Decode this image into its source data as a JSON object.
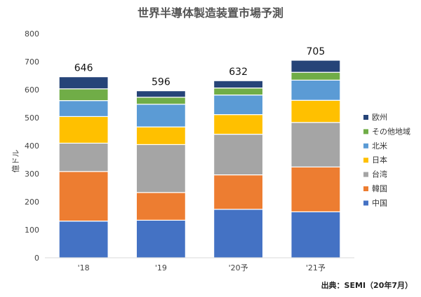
{
  "chart_data": {
    "type": "bar",
    "stacked": true,
    "title": "世界半導体製造装置市場予測",
    "ylabel": "億ドル",
    "xlabel": "",
    "ylim": [
      0,
      800
    ],
    "yticks": [
      0,
      100,
      200,
      300,
      400,
      500,
      600,
      700,
      800
    ],
    "grid": false,
    "legend_position": "right",
    "categories": [
      "'18",
      "'19",
      "'20予",
      "'21予"
    ],
    "totals": [
      "646",
      "596",
      "632",
      "705"
    ],
    "series": [
      {
        "name": "中国",
        "color": "#4472C4",
        "values": [
          131,
          134,
          173,
          164
        ]
      },
      {
        "name": "韓国",
        "color": "#ED7D31",
        "values": [
          177,
          99,
          123,
          160
        ]
      },
      {
        "name": "台湾",
        "color": "#A5A5A5",
        "values": [
          101,
          171,
          145,
          159
        ]
      },
      {
        "name": "日本",
        "color": "#FFC000",
        "values": [
          95,
          63,
          70,
          79
        ]
      },
      {
        "name": "北米",
        "color": "#5B9BD5",
        "values": [
          57,
          81,
          70,
          72
        ]
      },
      {
        "name": "その他地域",
        "color": "#70AD47",
        "values": [
          42,
          25,
          25,
          28
        ]
      },
      {
        "name": "欧州",
        "color": "#264478",
        "values": [
          43,
          23,
          26,
          43
        ]
      }
    ],
    "source": "出典：SEMI（20年7月）"
  }
}
